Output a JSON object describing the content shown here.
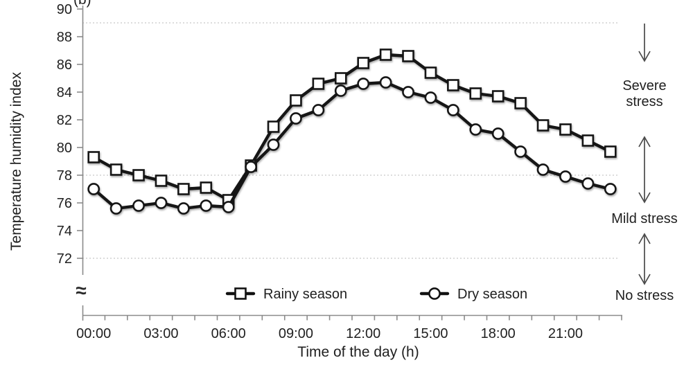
{
  "figure": {
    "panel_label": "(b)",
    "y_axis_break_symbol": "≈"
  },
  "chart_data": {
    "type": "line",
    "title": "",
    "xlabel": "Time of the day (h)",
    "ylabel": "Temperature humidity index",
    "ylim": [
      72,
      90
    ],
    "y_axis_break": true,
    "grid": {
      "style": "dotted",
      "y_values": [
        89,
        78,
        72
      ]
    },
    "yticks": [
      90,
      88,
      86,
      84,
      82,
      80,
      78,
      76,
      74,
      72
    ],
    "xticks": {
      "hours": [
        0,
        3,
        6,
        9,
        12,
        15,
        18,
        21
      ],
      "labels": [
        "00:00",
        "03:00",
        "06:00",
        "09:00",
        "12:00",
        "15:00",
        "18:00",
        "21:00"
      ]
    },
    "x_hours": [
      0,
      1,
      2,
      3,
      4,
      5,
      6,
      7,
      8,
      9,
      10,
      11,
      12,
      13,
      14,
      15,
      16,
      17,
      18,
      19,
      20,
      21,
      22,
      23
    ],
    "series": [
      {
        "name": "Rainy season",
        "marker": "square",
        "color": "#121212",
        "values": [
          79.3,
          78.4,
          78.0,
          77.6,
          77.0,
          77.1,
          76.2,
          78.7,
          81.5,
          83.4,
          84.6,
          85.0,
          86.1,
          86.7,
          86.6,
          85.4,
          84.5,
          83.9,
          83.7,
          83.2,
          81.6,
          81.3,
          80.5,
          79.7
        ]
      },
      {
        "name": "Dry season",
        "marker": "circle",
        "color": "#121212",
        "values": [
          77.0,
          75.6,
          75.8,
          76.0,
          75.6,
          75.8,
          75.7,
          78.6,
          80.2,
          82.1,
          82.7,
          84.1,
          84.6,
          84.7,
          84.0,
          83.6,
          82.7,
          81.3,
          81.0,
          79.7,
          78.4,
          77.9,
          77.4,
          77.0
        ]
      }
    ],
    "legend_position": "bottom-inside",
    "stress_zones": [
      "Severe stress",
      "Mild stress",
      "No stress"
    ]
  }
}
